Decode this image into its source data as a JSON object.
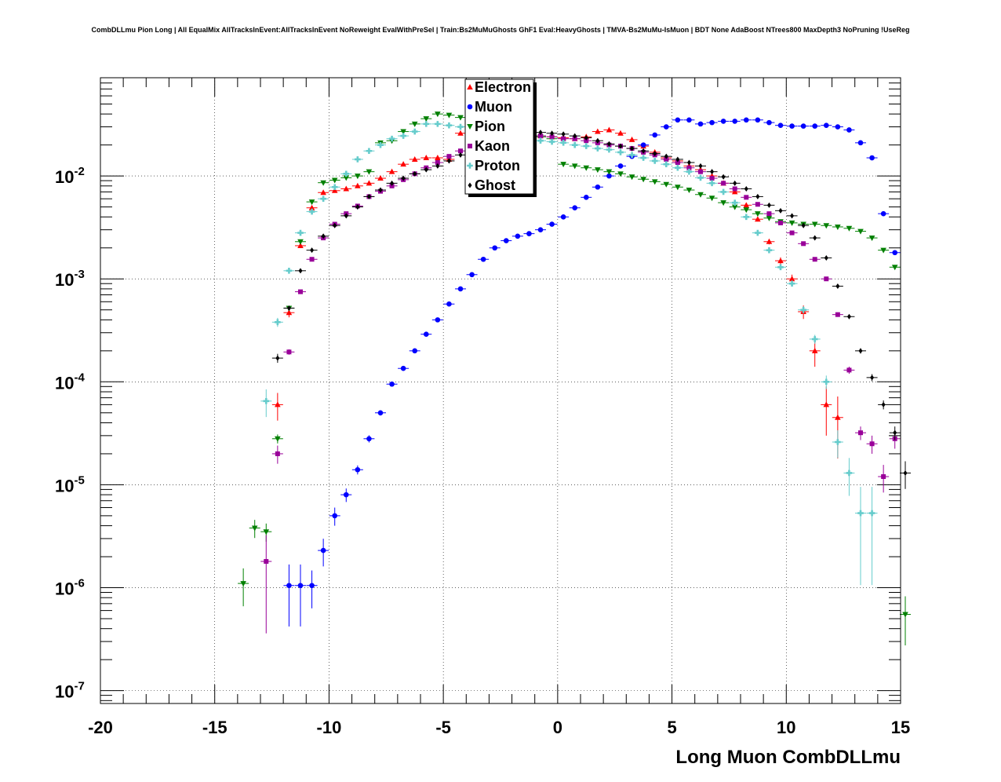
{
  "chart_data": {
    "type": "scatter",
    "title": "CombDLLmu Pion Long | All EqualMix AllTracksInEvent:AllTracksInEvent NoReweight EvalWithPreSel | Train:Bs2MuMuGhosts GhF1 Eval:HeavyGhosts | TMVA-Bs2MuMu-IsMuon | BDT None AdaBoost NTrees800 MaxDepth3 NoPruning !UseReg",
    "xlabel": "Long Muon CombDLLmu",
    "ylabel": "",
    "xlim": [
      -20,
      15
    ],
    "ylim": [
      7.5e-08,
      0.09
    ],
    "yscale": "log",
    "grid": true,
    "legend_position": "top-center",
    "x_ticks": [
      "-20",
      "-15",
      "-10",
      "-5",
      "0",
      "5",
      "10",
      "15"
    ],
    "y_ticks": [
      {
        "base": "10",
        "exp": "-2",
        "value": 0.01
      },
      {
        "base": "10",
        "exp": "-3",
        "value": 0.001
      },
      {
        "base": "10",
        "exp": "-4",
        "value": 0.0001
      },
      {
        "base": "10",
        "exp": "-5",
        "value": 1e-05
      },
      {
        "base": "10",
        "exp": "-6",
        "value": 1e-06
      },
      {
        "base": "10",
        "exp": "-7",
        "value": 1e-07
      }
    ],
    "series": [
      {
        "name": "Electron",
        "color": "#ff0000",
        "marker": "triangle-up",
        "x": [
          -12.25,
          -11.75,
          -11.25,
          -10.75,
          -10.25,
          -9.75,
          -9.25,
          -8.75,
          -8.25,
          -7.75,
          -7.25,
          -6.75,
          -6.25,
          -5.75,
          -5.25,
          -4.75,
          -4.25,
          -3.75,
          -3.25,
          -2.75,
          -2.25,
          -1.75,
          -1.25,
          -0.75,
          -0.25,
          0.25,
          0.75,
          1.25,
          1.75,
          2.25,
          2.75,
          3.25,
          3.75,
          4.25,
          4.75,
          5.25,
          5.75,
          6.25,
          6.75,
          7.25,
          7.75,
          8.25,
          8.75,
          9.25,
          9.75,
          10.25,
          10.75,
          11.25,
          11.75,
          12.25
        ],
        "y": [
          6e-05,
          0.00047,
          0.0021,
          0.0049,
          0.0069,
          0.0072,
          0.0075,
          0.008,
          0.0085,
          0.0095,
          0.011,
          0.013,
          0.0145,
          0.015,
          0.015,
          0.0145,
          0.026,
          0.028,
          0.028,
          0.027,
          0.026,
          0.0255,
          0.025,
          0.0245,
          0.024,
          0.0235,
          0.023,
          0.024,
          0.027,
          0.028,
          0.026,
          0.0225,
          0.0195,
          0.017,
          0.015,
          0.014,
          0.0125,
          0.0115,
          0.01,
          0.0085,
          0.007,
          0.0052,
          0.0038,
          0.0023,
          0.0015,
          0.001,
          0.00048,
          0.0002,
          6e-05,
          4.5e-05
        ],
        "err": [
          0.3,
          0.1,
          0.05,
          0.04,
          0.03,
          0.03,
          0.03,
          0.03,
          0.03,
          0.03,
          0.03,
          0.03,
          0.03,
          0.03,
          0.03,
          0.03,
          0.03,
          0.03,
          0.03,
          0.03,
          0.03,
          0.03,
          0.03,
          0.03,
          0.03,
          0.03,
          0.03,
          0.03,
          0.03,
          0.03,
          0.03,
          0.03,
          0.03,
          0.03,
          0.03,
          0.03,
          0.03,
          0.03,
          0.03,
          0.03,
          0.04,
          0.05,
          0.05,
          0.06,
          0.08,
          0.1,
          0.15,
          0.3,
          0.5,
          0.6
        ]
      },
      {
        "name": "Muon",
        "color": "#0000ff",
        "marker": "circle",
        "x": [
          -11.75,
          -11.25,
          -10.75,
          -10.25,
          -9.75,
          -9.25,
          -8.75,
          -8.25,
          -7.75,
          -7.25,
          -6.75,
          -6.25,
          -5.75,
          -5.25,
          -4.75,
          -4.25,
          -3.75,
          -3.25,
          -2.75,
          -2.25,
          -1.75,
          -1.25,
          -0.75,
          -0.25,
          0.25,
          0.75,
          1.25,
          1.75,
          2.25,
          2.75,
          3.25,
          3.75,
          4.25,
          4.75,
          5.25,
          5.75,
          6.25,
          6.75,
          7.25,
          7.75,
          8.25,
          8.75,
          9.25,
          9.75,
          10.25,
          10.75,
          11.25,
          11.75,
          12.25,
          12.75,
          13.25,
          13.75,
          14.25,
          14.75
        ],
        "y": [
          1.05e-06,
          1.05e-06,
          1.05e-06,
          2.3e-06,
          5e-06,
          8e-06,
          1.4e-05,
          2.8e-05,
          5e-05,
          9.5e-05,
          0.000135,
          0.0002,
          0.00029,
          0.0004,
          0.00057,
          0.0008,
          0.0011,
          0.00155,
          0.002,
          0.00235,
          0.0026,
          0.00275,
          0.003,
          0.0034,
          0.004,
          0.0049,
          0.0062,
          0.0078,
          0.01,
          0.0125,
          0.0155,
          0.02,
          0.025,
          0.03,
          0.035,
          0.035,
          0.032,
          0.033,
          0.034,
          0.034,
          0.035,
          0.035,
          0.033,
          0.031,
          0.0305,
          0.0305,
          0.0305,
          0.031,
          0.03,
          0.028,
          0.021,
          0.015,
          0.0043,
          0.0018
        ],
        "err": [
          0.6,
          0.6,
          0.4,
          0.3,
          0.2,
          0.15,
          0.1,
          0.08,
          0.06,
          0.05,
          0.04,
          0.03,
          0.03,
          0.03,
          0.03,
          0.03,
          0.03,
          0.03,
          0.03,
          0.03,
          0.03,
          0.03,
          0.03,
          0.03,
          0.03,
          0.03,
          0.03,
          0.03,
          0.03,
          0.03,
          0.03,
          0.03,
          0.03,
          0.03,
          0.03,
          0.03,
          0.03,
          0.03,
          0.03,
          0.03,
          0.03,
          0.03,
          0.03,
          0.03,
          0.03,
          0.03,
          0.03,
          0.03,
          0.03,
          0.03,
          0.03,
          0.03,
          0.04,
          0.05
        ]
      },
      {
        "name": "Pion",
        "color": "#008000",
        "marker": "triangle-down",
        "x": [
          -13.75,
          -13.25,
          -12.75,
          -12.25,
          -11.75,
          -11.25,
          -10.75,
          -10.25,
          -9.75,
          -9.25,
          -8.75,
          -8.25,
          -7.75,
          -7.25,
          -6.75,
          -6.25,
          -5.75,
          -5.25,
          -4.75,
          -4.25,
          -3.75,
          -3.25,
          -2.75,
          -2.25,
          -1.75,
          -1.25,
          -0.75,
          -0.25,
          0.25,
          0.75,
          1.25,
          1.75,
          2.25,
          2.75,
          3.25,
          3.75,
          4.25,
          4.75,
          5.25,
          5.75,
          6.25,
          6.75,
          7.25,
          7.75,
          8.25,
          8.75,
          9.25,
          9.75,
          10.25,
          10.75,
          11.25,
          11.75,
          12.25,
          12.75,
          13.25,
          13.75,
          14.25,
          14.75,
          15.25
        ],
        "y": [
          1.1e-06,
          3.8e-06,
          3.5e-06,
          2.8e-05,
          0.00052,
          0.0023,
          0.0056,
          0.0086,
          0.0091,
          0.0096,
          0.01,
          0.011,
          0.021,
          0.022,
          0.027,
          0.032,
          0.036,
          0.04,
          0.039,
          0.037,
          0.034,
          0.033,
          0.031,
          0.03,
          0.027,
          0.026,
          0.024,
          0.023,
          0.013,
          0.0125,
          0.012,
          0.0115,
          0.011,
          0.0105,
          0.0098,
          0.0093,
          0.0088,
          0.0083,
          0.0078,
          0.0073,
          0.0066,
          0.0061,
          0.0055,
          0.005,
          0.0047,
          0.0043,
          0.0039,
          0.0036,
          0.0035,
          0.0034,
          0.0034,
          0.0033,
          0.0032,
          0.0031,
          0.0029,
          0.0025,
          0.0019,
          0.0013,
          5.5e-07
        ],
        "err": [
          0.4,
          0.2,
          0.2,
          0.1,
          0.04,
          0.03,
          0.03,
          0.03,
          0.03,
          0.03,
          0.03,
          0.03,
          0.03,
          0.03,
          0.03,
          0.03,
          0.03,
          0.03,
          0.03,
          0.03,
          0.03,
          0.03,
          0.03,
          0.03,
          0.03,
          0.03,
          0.03,
          0.03,
          0.03,
          0.03,
          0.03,
          0.03,
          0.03,
          0.03,
          0.03,
          0.03,
          0.03,
          0.03,
          0.03,
          0.03,
          0.03,
          0.03,
          0.03,
          0.03,
          0.03,
          0.03,
          0.03,
          0.03,
          0.03,
          0.03,
          0.03,
          0.03,
          0.03,
          0.03,
          0.03,
          0.03,
          0.03,
          0.03,
          0.5
        ]
      },
      {
        "name": "Kaon",
        "color": "#990099",
        "marker": "square",
        "x": [
          -12.75,
          -12.25,
          -11.75,
          -11.25,
          -10.75,
          -10.25,
          -9.75,
          -9.25,
          -8.75,
          -8.25,
          -7.75,
          -7.25,
          -6.75,
          -6.25,
          -5.75,
          -5.25,
          -4.75,
          -4.25,
          -3.75,
          -3.25,
          -2.75,
          -2.25,
          -1.75,
          -1.25,
          -0.75,
          -0.25,
          0.25,
          0.75,
          1.25,
          1.75,
          2.25,
          2.75,
          3.25,
          3.75,
          4.25,
          4.75,
          5.25,
          5.75,
          6.25,
          6.75,
          7.25,
          7.75,
          8.25,
          8.75,
          9.25,
          9.75,
          10.25,
          10.75,
          11.25,
          11.75,
          12.25,
          12.75,
          13.25,
          13.75,
          14.25,
          14.75
        ],
        "y": [
          1.8e-06,
          2e-05,
          0.000195,
          0.00075,
          0.00155,
          0.0025,
          0.0034,
          0.0043,
          0.0051,
          0.0063,
          0.0071,
          0.008,
          0.0092,
          0.0105,
          0.012,
          0.0135,
          0.0155,
          0.0175,
          0.024,
          0.0255,
          0.026,
          0.0265,
          0.0255,
          0.025,
          0.0245,
          0.024,
          0.023,
          0.023,
          0.022,
          0.021,
          0.02,
          0.0195,
          0.0185,
          0.017,
          0.016,
          0.0145,
          0.0135,
          0.012,
          0.011,
          0.0095,
          0.0085,
          0.0075,
          0.0062,
          0.0053,
          0.0043,
          0.0035,
          0.0028,
          0.0022,
          0.00155,
          0.001,
          0.00045,
          0.00013,
          3.2e-05,
          2.5e-05,
          1.2e-05,
          2.8e-05
        ],
        "err": [
          0.8,
          0.2,
          0.06,
          0.04,
          0.03,
          0.03,
          0.03,
          0.03,
          0.03,
          0.03,
          0.03,
          0.03,
          0.03,
          0.03,
          0.03,
          0.03,
          0.03,
          0.03,
          0.03,
          0.03,
          0.03,
          0.03,
          0.03,
          0.03,
          0.03,
          0.03,
          0.03,
          0.03,
          0.03,
          0.03,
          0.03,
          0.03,
          0.03,
          0.03,
          0.03,
          0.03,
          0.03,
          0.03,
          0.03,
          0.03,
          0.03,
          0.03,
          0.03,
          0.03,
          0.03,
          0.03,
          0.03,
          0.03,
          0.03,
          0.03,
          0.05,
          0.08,
          0.15,
          0.2,
          0.3,
          0.2
        ]
      },
      {
        "name": "Proton",
        "color": "#66cccc",
        "marker": "cross",
        "x": [
          -12.75,
          -12.25,
          -11.75,
          -11.25,
          -10.75,
          -10.25,
          -9.75,
          -9.25,
          -8.75,
          -8.25,
          -7.75,
          -7.25,
          -6.75,
          -6.25,
          -5.75,
          -5.25,
          -4.75,
          -4.25,
          -3.75,
          -3.25,
          -2.75,
          -2.25,
          -1.75,
          -1.25,
          -0.75,
          -0.25,
          0.25,
          0.75,
          1.25,
          1.75,
          2.25,
          2.75,
          3.25,
          3.75,
          4.25,
          4.75,
          5.25,
          5.75,
          6.25,
          6.75,
          7.25,
          7.75,
          8.25,
          8.75,
          9.25,
          9.75,
          10.25,
          10.75,
          11.25,
          11.75,
          12.25,
          12.75,
          13.25,
          13.75
        ],
        "y": [
          6.5e-05,
          0.00038,
          0.0012,
          0.0028,
          0.0045,
          0.006,
          0.0078,
          0.0105,
          0.0145,
          0.0175,
          0.02,
          0.023,
          0.0245,
          0.027,
          0.032,
          0.032,
          0.031,
          0.03,
          0.0305,
          0.03,
          0.029,
          0.026,
          0.0245,
          0.023,
          0.022,
          0.0215,
          0.021,
          0.02,
          0.0195,
          0.0185,
          0.018,
          0.017,
          0.016,
          0.015,
          0.014,
          0.013,
          0.012,
          0.011,
          0.0096,
          0.0085,
          0.007,
          0.0055,
          0.004,
          0.0028,
          0.0019,
          0.0013,
          0.0009,
          0.0005,
          0.00026,
          0.0001,
          2.6e-05,
          1.3e-05,
          5.3e-06,
          5.3e-06
        ],
        "err": [
          0.3,
          0.1,
          0.05,
          0.04,
          0.03,
          0.03,
          0.03,
          0.03,
          0.03,
          0.03,
          0.03,
          0.03,
          0.03,
          0.03,
          0.03,
          0.03,
          0.03,
          0.03,
          0.03,
          0.03,
          0.03,
          0.03,
          0.03,
          0.03,
          0.03,
          0.03,
          0.03,
          0.03,
          0.03,
          0.03,
          0.03,
          0.03,
          0.03,
          0.03,
          0.03,
          0.03,
          0.03,
          0.03,
          0.03,
          0.03,
          0.03,
          0.03,
          0.03,
          0.03,
          0.04,
          0.05,
          0.06,
          0.08,
          0.1,
          0.15,
          0.3,
          0.4,
          0.8,
          0.8
        ]
      },
      {
        "name": "Ghost",
        "color": "#000000",
        "marker": "diamond",
        "x": [
          -12.25,
          -11.75,
          -11.25,
          -10.75,
          -10.25,
          -9.75,
          -9.25,
          -8.75,
          -8.25,
          -7.75,
          -7.25,
          -6.75,
          -6.25,
          -5.75,
          -5.25,
          -4.75,
          -4.25,
          -3.75,
          -3.25,
          -2.75,
          -2.25,
          -1.75,
          -1.25,
          -0.75,
          -0.25,
          0.25,
          0.75,
          1.25,
          1.75,
          2.25,
          2.75,
          3.25,
          3.75,
          4.25,
          4.75,
          5.25,
          5.75,
          6.25,
          6.75,
          7.25,
          7.75,
          8.25,
          8.75,
          9.25,
          9.75,
          10.25,
          10.75,
          11.25,
          11.75,
          12.25,
          12.75,
          13.25,
          13.75,
          14.25,
          14.75,
          15.25
        ],
        "y": [
          0.00017,
          0.00052,
          0.0012,
          0.0019,
          0.0026,
          0.0033,
          0.0041,
          0.005,
          0.0063,
          0.0073,
          0.0085,
          0.0095,
          0.0105,
          0.0115,
          0.0125,
          0.014,
          0.016,
          0.018,
          0.025,
          0.026,
          0.0265,
          0.027,
          0.027,
          0.0265,
          0.026,
          0.0255,
          0.0245,
          0.0235,
          0.022,
          0.0205,
          0.0195,
          0.0185,
          0.0175,
          0.0165,
          0.0155,
          0.0145,
          0.0135,
          0.0125,
          0.011,
          0.0098,
          0.0085,
          0.0075,
          0.0063,
          0.0052,
          0.0046,
          0.0041,
          0.0033,
          0.0025,
          0.0016,
          0.00085,
          0.00043,
          0.0002,
          0.00011,
          6e-05,
          3.2e-05,
          1.3e-05
        ],
        "err": [
          0.1,
          0.05,
          0.04,
          0.03,
          0.03,
          0.03,
          0.03,
          0.03,
          0.03,
          0.03,
          0.03,
          0.03,
          0.03,
          0.03,
          0.03,
          0.03,
          0.03,
          0.03,
          0.03,
          0.03,
          0.03,
          0.03,
          0.03,
          0.03,
          0.03,
          0.03,
          0.03,
          0.03,
          0.03,
          0.03,
          0.03,
          0.03,
          0.03,
          0.03,
          0.03,
          0.03,
          0.03,
          0.03,
          0.03,
          0.03,
          0.03,
          0.03,
          0.03,
          0.03,
          0.03,
          0.03,
          0.03,
          0.03,
          0.03,
          0.04,
          0.05,
          0.06,
          0.08,
          0.1,
          0.15,
          0.3
        ]
      }
    ]
  }
}
